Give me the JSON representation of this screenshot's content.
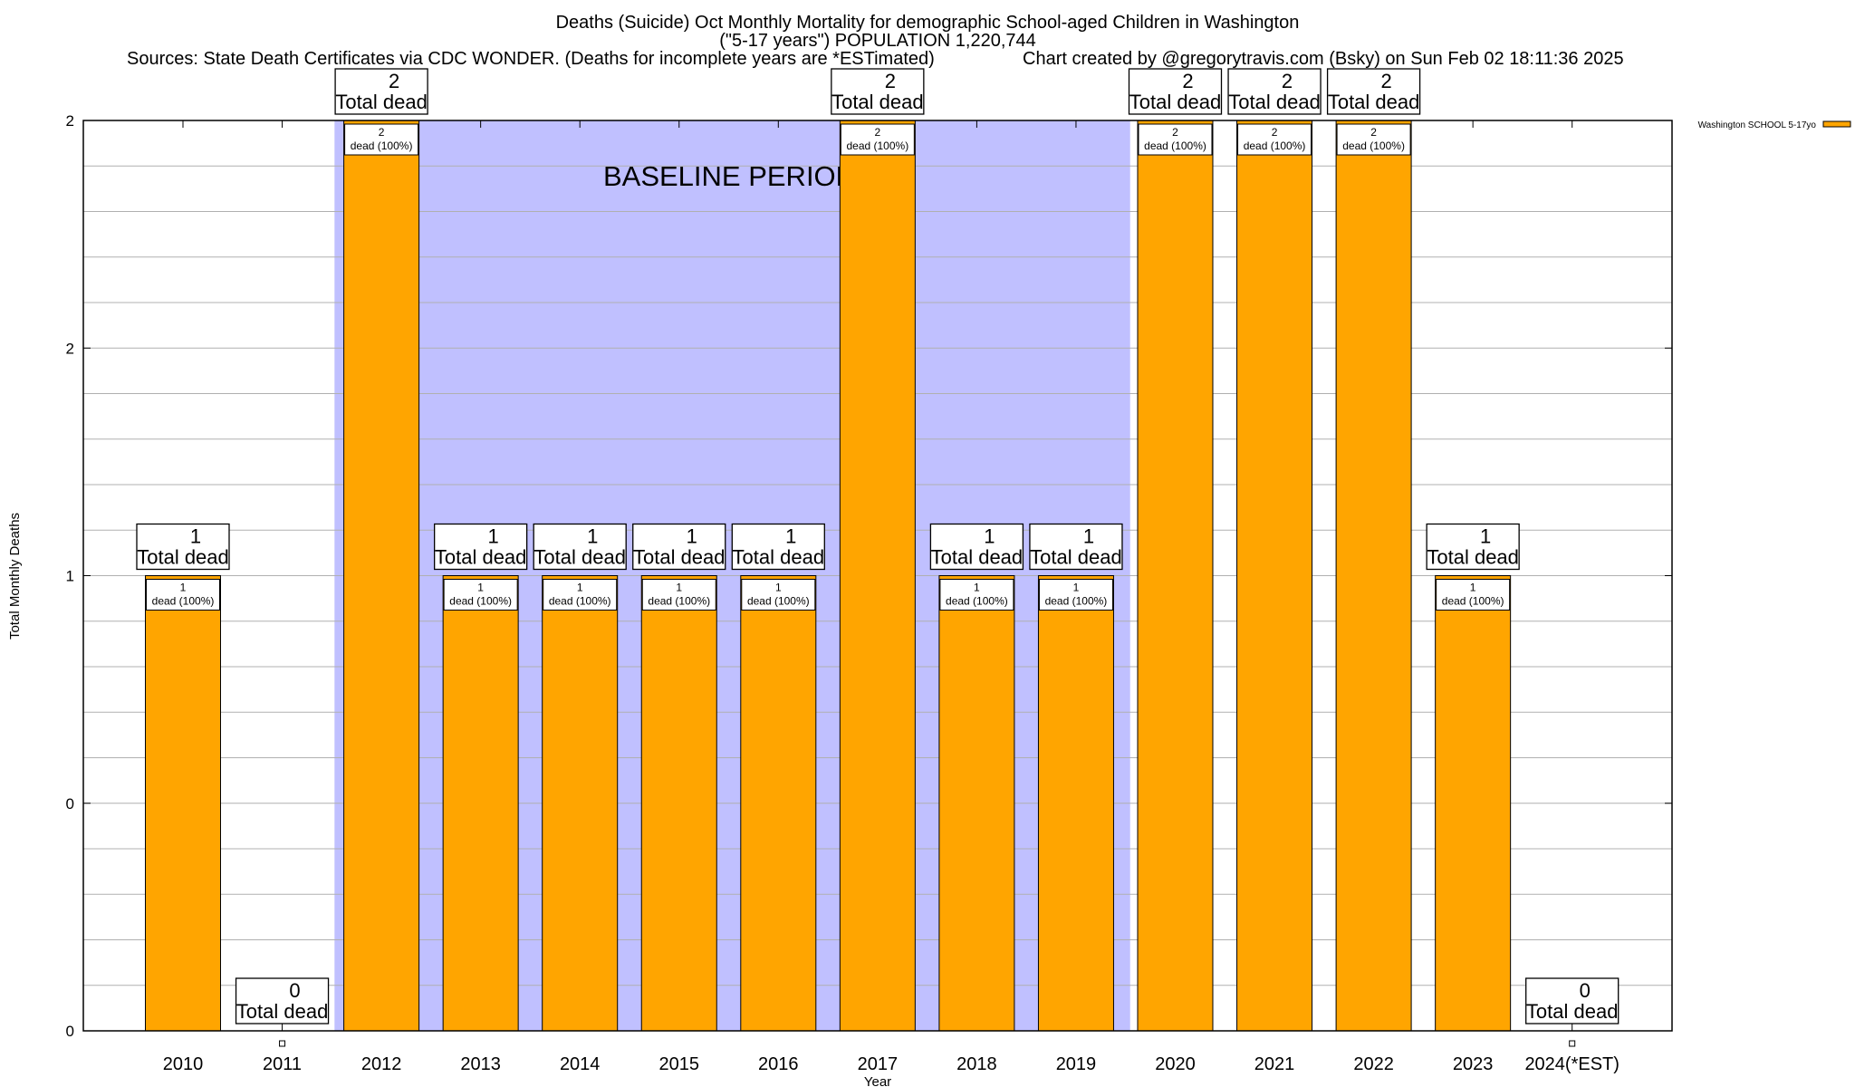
{
  "chart_data": {
    "type": "bar",
    "title": "Deaths (Suicide) Oct Monthly Mortality for demographic School-aged Children in Washington",
    "subtitle": "(\"5-17 years\") POPULATION 1,220,744",
    "sources": "Sources: State Death Certificates via CDC WONDER. (Deaths for incomplete years are *ESTimated)",
    "credit": "Chart created by @gregorytravis.com (Bsky) on Sun Feb 02 18:11:36 2025",
    "xlabel": "Year",
    "ylabel": "Total Monthly Deaths",
    "ylim": [
      0,
      2
    ],
    "yticks": [
      0,
      0.5,
      1,
      1.5,
      2
    ],
    "ytick_labels": [
      "0",
      "0",
      "1",
      "2",
      "2"
    ],
    "grid": true,
    "legend_position": "top-right",
    "series": [
      {
        "name": "Washington SCHOOL 5-17yo",
        "color": "#ffa500"
      }
    ],
    "categories": [
      "2010",
      "2011",
      "2012",
      "2013",
      "2014",
      "2015",
      "2016",
      "2017",
      "2018",
      "2019",
      "2020",
      "2021",
      "2022",
      "2023",
      "2024(*EST)"
    ],
    "values": [
      1,
      0,
      2,
      1,
      1,
      1,
      1,
      2,
      1,
      1,
      2,
      2,
      2,
      1,
      0
    ],
    "total_label_suffix": "Total dead",
    "segment_label_suffix": "dead (100%)",
    "baseline": {
      "label": "BASELINE PERIOD",
      "from": "2011.5",
      "to": "2019.5",
      "color": "#c0c0ff"
    }
  }
}
